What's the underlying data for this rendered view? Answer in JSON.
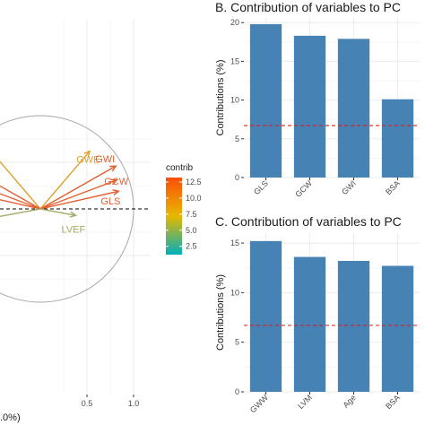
{
  "chart_data": [
    {
      "type": "scatter",
      "subtype": "pca-variable-correlation-circle",
      "title": "",
      "xlabel": ".0%)",
      "x_ticks": [
        "0.5",
        "1.0"
      ],
      "xlim": [
        -0.3,
        1.15
      ],
      "ylim": [
        -0.95,
        0.95
      ],
      "circle_radius": 1.0,
      "dashed_reference": "horizontal at y=0",
      "vectors": [
        {
          "name": "GWE",
          "x": 0.53,
          "y": 0.62,
          "color": "#E0A030"
        },
        {
          "name": "GWI",
          "x": 0.81,
          "y": 0.46,
          "color": "#E06030"
        },
        {
          "name": "GCW",
          "x": 0.82,
          "y": 0.31,
          "color": "#E36332"
        },
        {
          "name": "GLS",
          "x": 0.84,
          "y": 0.19,
          "color": "#E25C2F"
        },
        {
          "name": "LVEF",
          "x": 0.38,
          "y": -0.07,
          "color": "#A5AA6A"
        }
      ],
      "legend": {
        "title": "contrib",
        "placement": "right",
        "ticks": [
          "12.5",
          "10.0",
          "7.5",
          "5.0",
          "2.5"
        ],
        "tick_values": [
          12.5,
          10.0,
          7.5,
          5.0,
          2.5
        ],
        "range": [
          1.2,
          13.2
        ],
        "gradient_colors": [
          "#FC4E07",
          "#E7B800",
          "#00AFBB"
        ]
      }
    },
    {
      "type": "bar",
      "title": "B. Contribution of variables to PC",
      "ylabel": "Contributions (%)",
      "categories": [
        "GLS",
        "GCW",
        "GWI",
        "BSA"
      ],
      "values": [
        19.8,
        18.3,
        17.9,
        10.1
      ],
      "y_ticks": [
        "0",
        "5",
        "10",
        "15",
        "20"
      ],
      "ylim": [
        0,
        20.6
      ],
      "reference_line": 6.7,
      "bar_color": "#4682B4",
      "reference_color": "#E31A1C"
    },
    {
      "type": "bar",
      "title": "C. Contribution of variables to PC",
      "ylabel": "Contributions (%)",
      "categories": [
        "GWW",
        "LVM",
        "Age",
        "BSA"
      ],
      "values": [
        15.2,
        13.6,
        13.2,
        12.7
      ],
      "y_ticks": [
        "0",
        "5",
        "10",
        "15"
      ],
      "ylim": [
        0,
        16.0
      ],
      "reference_line": 6.7,
      "bar_color": "#4682B4",
      "reference_color": "#E31A1C"
    }
  ]
}
